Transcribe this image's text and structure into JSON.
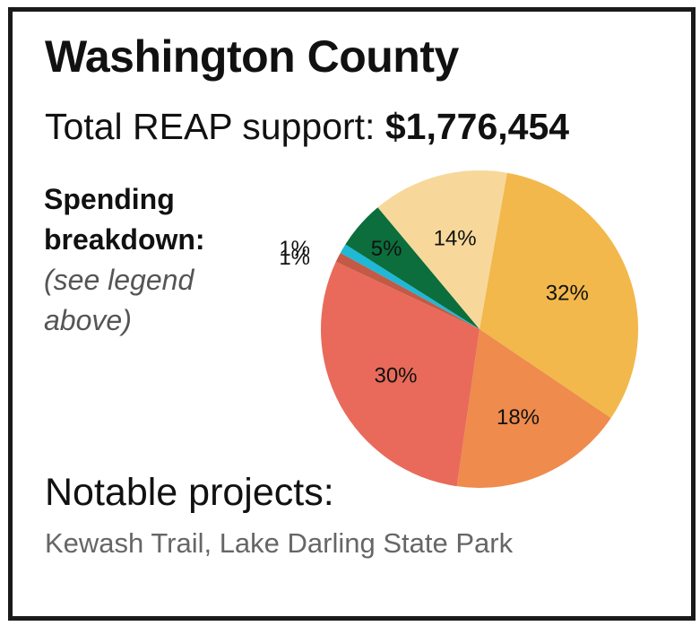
{
  "header": {
    "title": "Washington County",
    "support_label": "Total REAP support: ",
    "support_amount": "$1,776,454"
  },
  "breakdown": {
    "heading": "Spending\nbreakdown:",
    "note": "(see legend\nabove)"
  },
  "chart_data": {
    "type": "pie",
    "values": [
      32,
      18,
      30,
      1,
      1,
      5,
      14
    ],
    "labels": [
      "32%",
      "18%",
      "30%",
      "1%",
      "1%",
      "5%",
      "14%"
    ],
    "colors": [
      "#f2b84b",
      "#ee8b4d",
      "#e96a5a",
      "#c25a45",
      "#1fb8d6",
      "#0b6e3c",
      "#f7d89a"
    ]
  },
  "projects": {
    "heading": "Notable projects:",
    "list": "Kewash Trail, Lake Darling State Park"
  }
}
